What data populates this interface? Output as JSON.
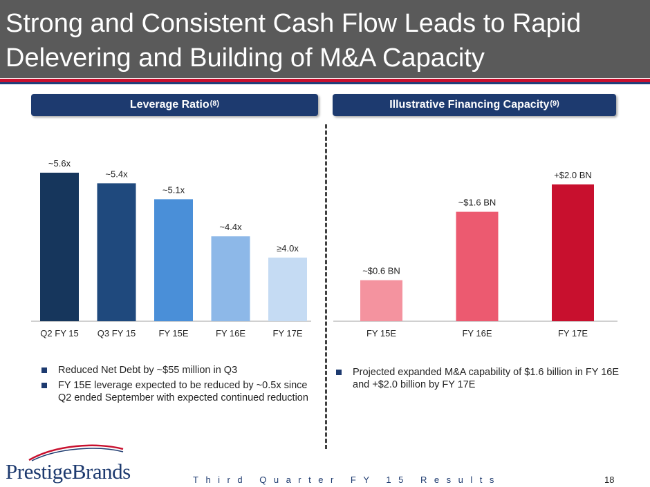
{
  "slide": {
    "title_line1": "Strong and Consistent Cash Flow Leads to Rapid",
    "title_line2": "Delevering and Building of M&A Capacity",
    "left_header": "Leverage Ratio",
    "left_header_note": "(8)",
    "right_header": "Illustrative Financing Capacity",
    "right_header_note": "(9)",
    "left_bullets": [
      "Reduced Net Debt by ~$55 million in Q3",
      "FY 15E leverage expected to be reduced by ~0.5x since Q2 ended September with expected continued reduction"
    ],
    "right_bullets": [
      "Projected expanded M&A capability of $1.6 billion in FY 16E and +$2.0 billion by FY 17E"
    ],
    "logo_text": "PrestigeBrands",
    "footer": "Third Quarter FY 15 Results",
    "page_number": "18"
  },
  "colors": {
    "title_bg": "#5a5a5a",
    "accent_red": "#c8102e",
    "navy": "#1d3a6f"
  },
  "chart_data": [
    {
      "type": "bar",
      "categories": [
        "Q2 FY 15",
        "Q3 FY 15",
        "FY 15E",
        "FY 16E",
        "FY 17E"
      ],
      "values": [
        5.6,
        5.4,
        5.1,
        4.4,
        4.0
      ],
      "data_labels": [
        "~5.6x",
        "~5.4x",
        "~5.1x",
        "~4.4x",
        "≥4.0x"
      ],
      "colors": [
        "#16365c",
        "#1f497d",
        "#4a8fd8",
        "#8db8e8",
        "#c5dbf3"
      ],
      "ylim": [
        2.8,
        5.6
      ],
      "grid": false
    },
    {
      "type": "bar",
      "categories": [
        "FY 15E",
        "FY 16E",
        "FY 17E"
      ],
      "values": [
        0.6,
        1.6,
        2.0
      ],
      "data_labels": [
        "~$0.6 BN",
        "~$1.6 BN",
        "+$2.0 BN"
      ],
      "colors": [
        "#f4939f",
        "#ec5a70",
        "#c8102e"
      ],
      "ylim": [
        0,
        2.0
      ],
      "grid": false
    }
  ]
}
